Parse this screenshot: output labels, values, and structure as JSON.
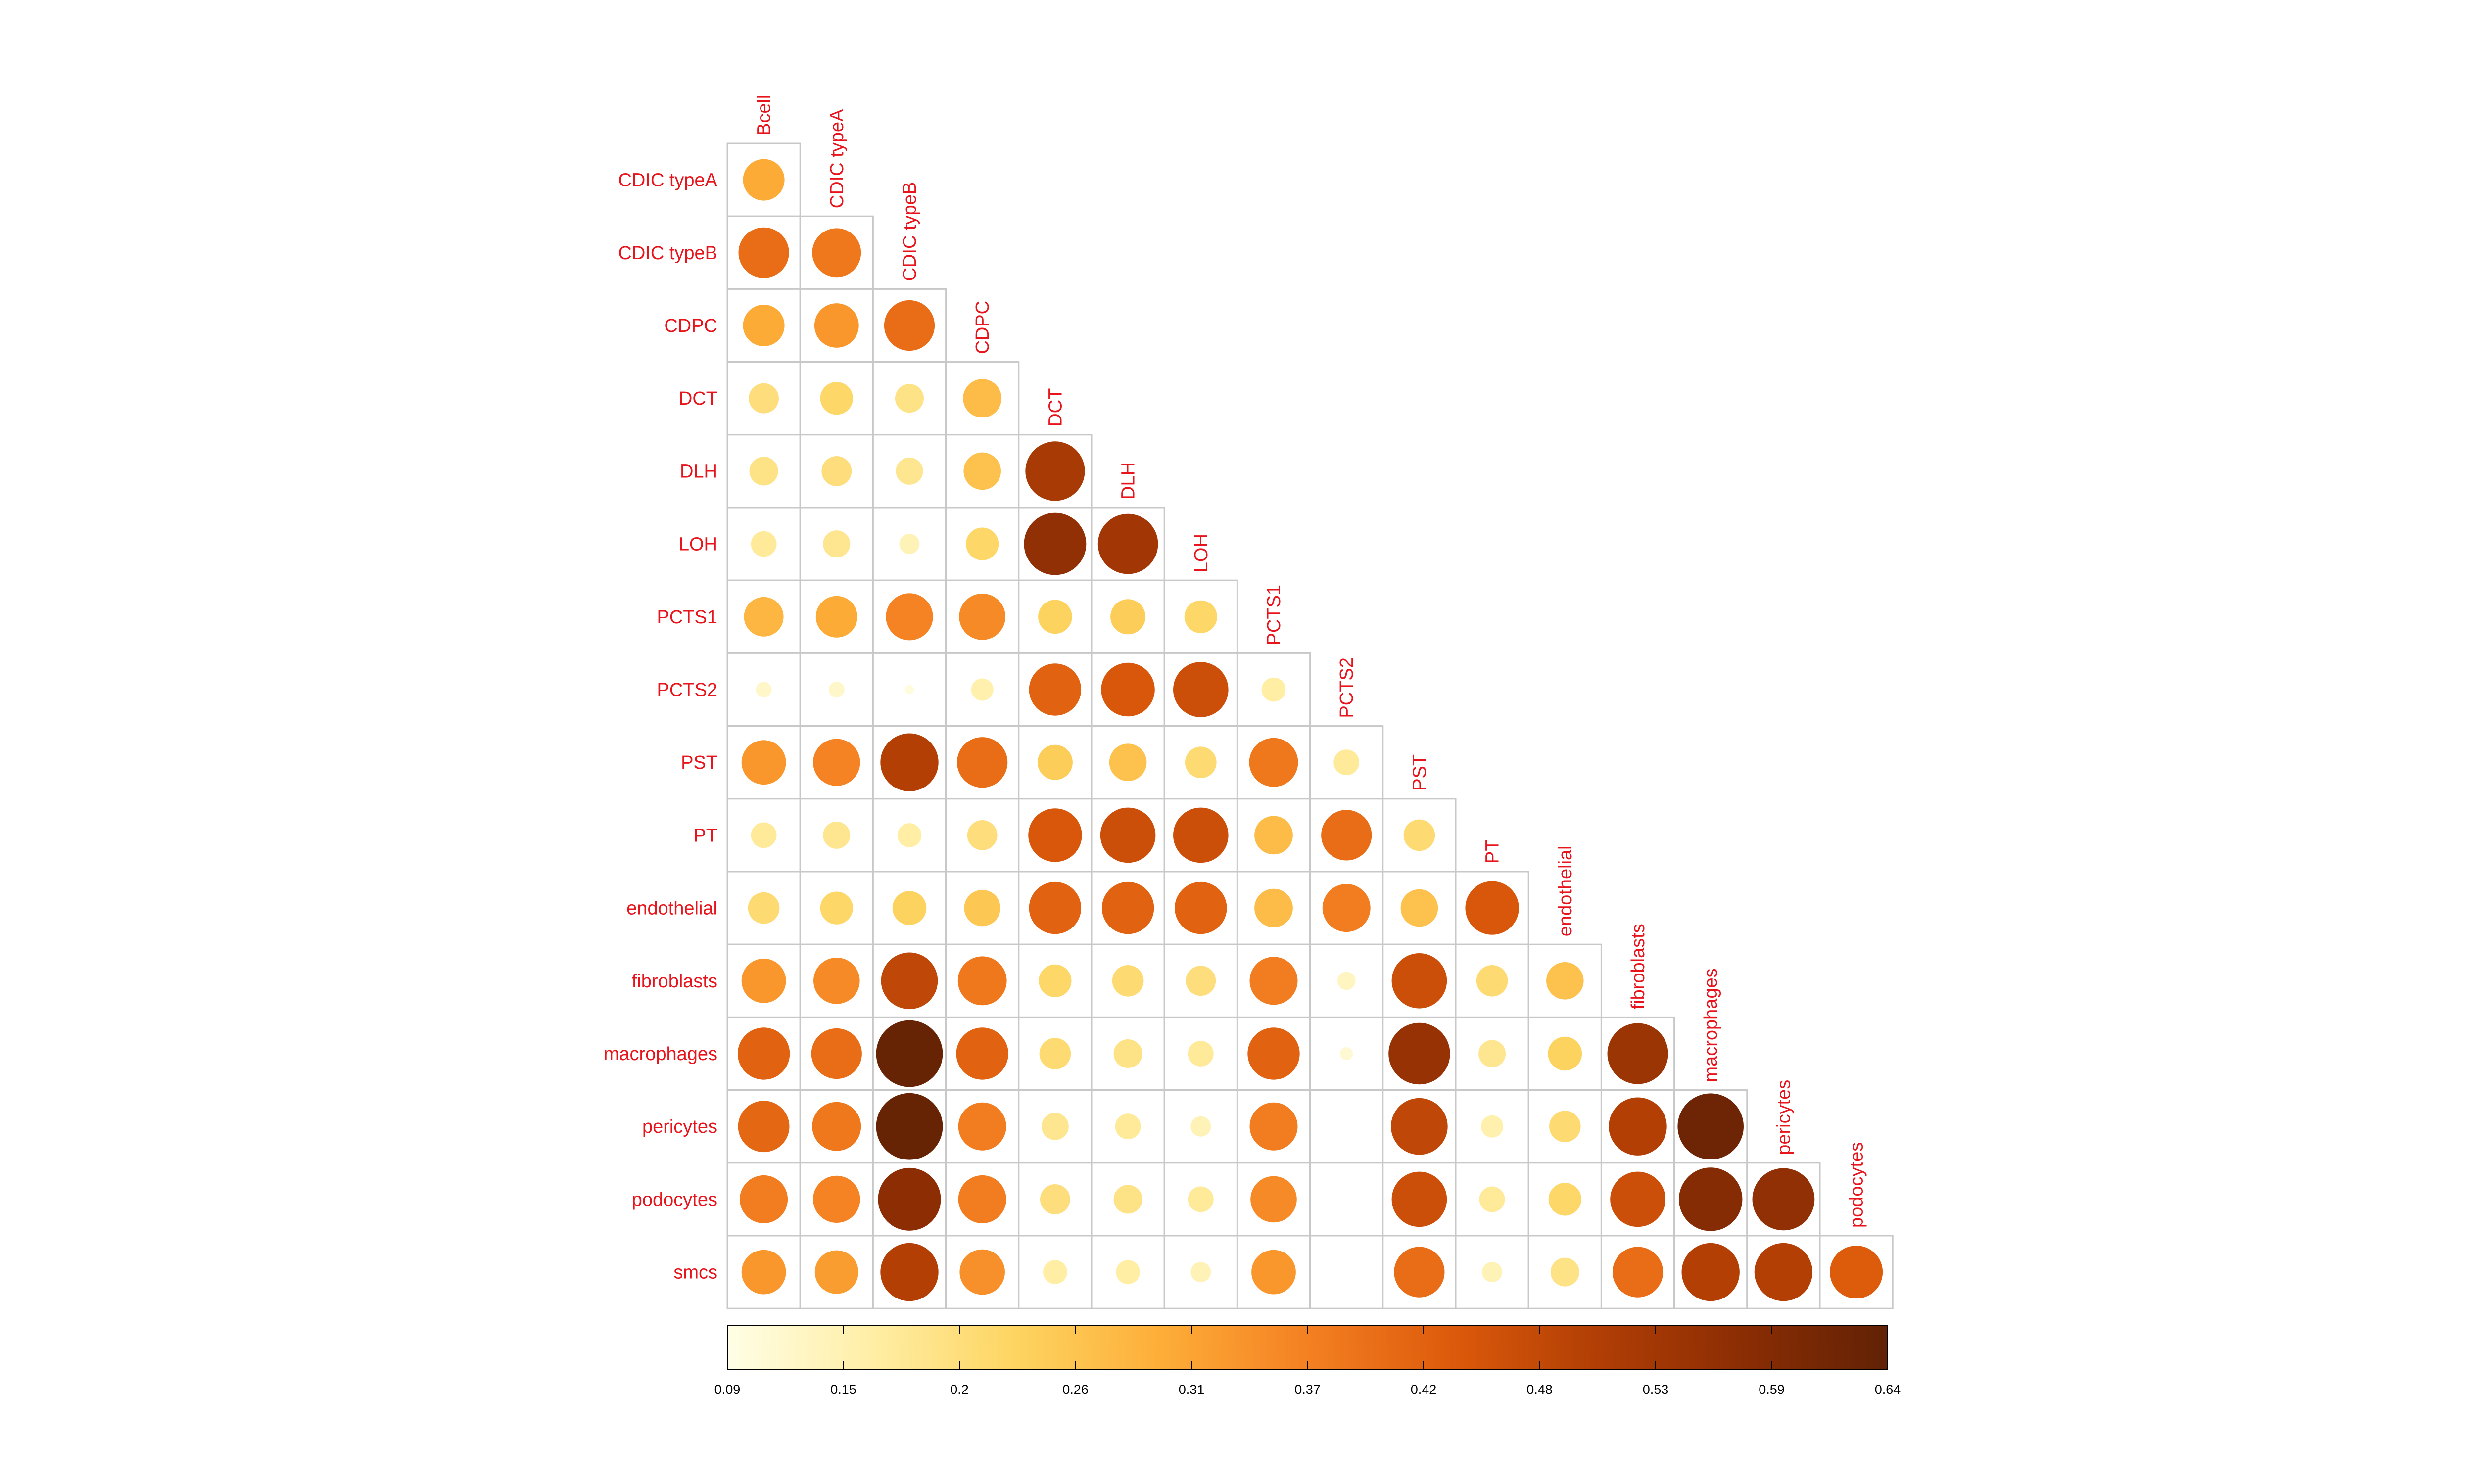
{
  "chart_data": {
    "type": "heatmap",
    "subtype": "correlation-circle-lower-triangle",
    "label_color": "#e8141c",
    "grid_color": "#c8c8c8",
    "row_labels": [
      "CDIC typeA",
      "CDIC typeB",
      "CDPC",
      "DCT",
      "DLH",
      "LOH",
      "PCTS1",
      "PCTS2",
      "PST",
      "PT",
      "endothelial",
      "fibroblasts",
      "macrophages",
      "pericytes",
      "podocytes",
      "smcs"
    ],
    "col_labels": [
      "Bcell",
      "CDIC typeA",
      "CDIC typeB",
      "CDPC",
      "DCT",
      "DLH",
      "LOH",
      "PCTS1",
      "PCTS2",
      "PST",
      "PT",
      "endothelial",
      "fibroblasts",
      "macrophages",
      "pericytes",
      "podocytes"
    ],
    "values": [
      [
        0.3
      ],
      [
        0.4,
        0.38
      ],
      [
        0.3,
        0.33,
        0.4
      ],
      [
        0.2,
        0.22,
        0.19,
        0.27
      ],
      [
        0.19,
        0.2,
        0.18,
        0.26,
        0.52
      ],
      [
        0.17,
        0.18,
        0.14,
        0.22,
        0.56,
        0.53
      ],
      [
        0.28,
        0.3,
        0.36,
        0.35,
        0.23,
        0.24,
        0.22
      ],
      [
        0.12,
        0.12,
        0.1,
        0.15,
        0.42,
        0.44,
        0.46,
        0.16
      ],
      [
        0.33,
        0.36,
        0.5,
        0.4,
        0.24,
        0.26,
        0.21,
        0.38,
        0.17
      ],
      [
        0.17,
        0.18,
        0.16,
        0.2,
        0.44,
        0.46,
        0.46,
        0.27,
        0.4,
        0.21
      ],
      [
        0.21,
        0.22,
        0.23,
        0.25,
        0.42,
        0.42,
        0.42,
        0.27,
        0.37,
        0.26,
        0.44
      ],
      [
        0.33,
        0.35,
        0.48,
        0.38,
        0.22,
        0.21,
        0.2,
        0.37,
        0.13,
        0.46,
        0.21,
        0.26
      ],
      [
        0.42,
        0.4,
        0.63,
        0.42,
        0.21,
        0.19,
        0.17,
        0.42,
        0.11,
        0.55,
        0.18,
        0.23,
        0.54
      ],
      [
        0.41,
        0.38,
        0.63,
        0.37,
        0.18,
        0.17,
        0.14,
        0.37,
        0.09,
        0.48,
        0.15,
        0.21,
        0.5,
        0.62
      ],
      [
        0.37,
        0.36,
        0.57,
        0.37,
        0.2,
        0.19,
        0.17,
        0.35,
        0.09,
        0.46,
        0.17,
        0.22,
        0.46,
        0.58,
        0.56
      ],
      [
        0.33,
        0.32,
        0.5,
        0.34,
        0.16,
        0.16,
        0.14,
        0.33,
        0.09,
        0.4,
        0.14,
        0.19,
        0.4,
        0.5,
        0.5,
        0.43
      ]
    ],
    "color_scale": {
      "min": 0.09,
      "max": 0.64,
      "stops": [
        "#fffee6",
        "#ffeea5",
        "#fdd460",
        "#fdad38",
        "#f48022",
        "#dc5a0b",
        "#b13e05",
        "#8b2d04",
        "#612205"
      ],
      "tick_labels": [
        "0.09",
        "0.15",
        "0.2",
        "0.26",
        "0.31",
        "0.37",
        "0.42",
        "0.48",
        "0.53",
        "0.59",
        "0.64"
      ]
    }
  }
}
